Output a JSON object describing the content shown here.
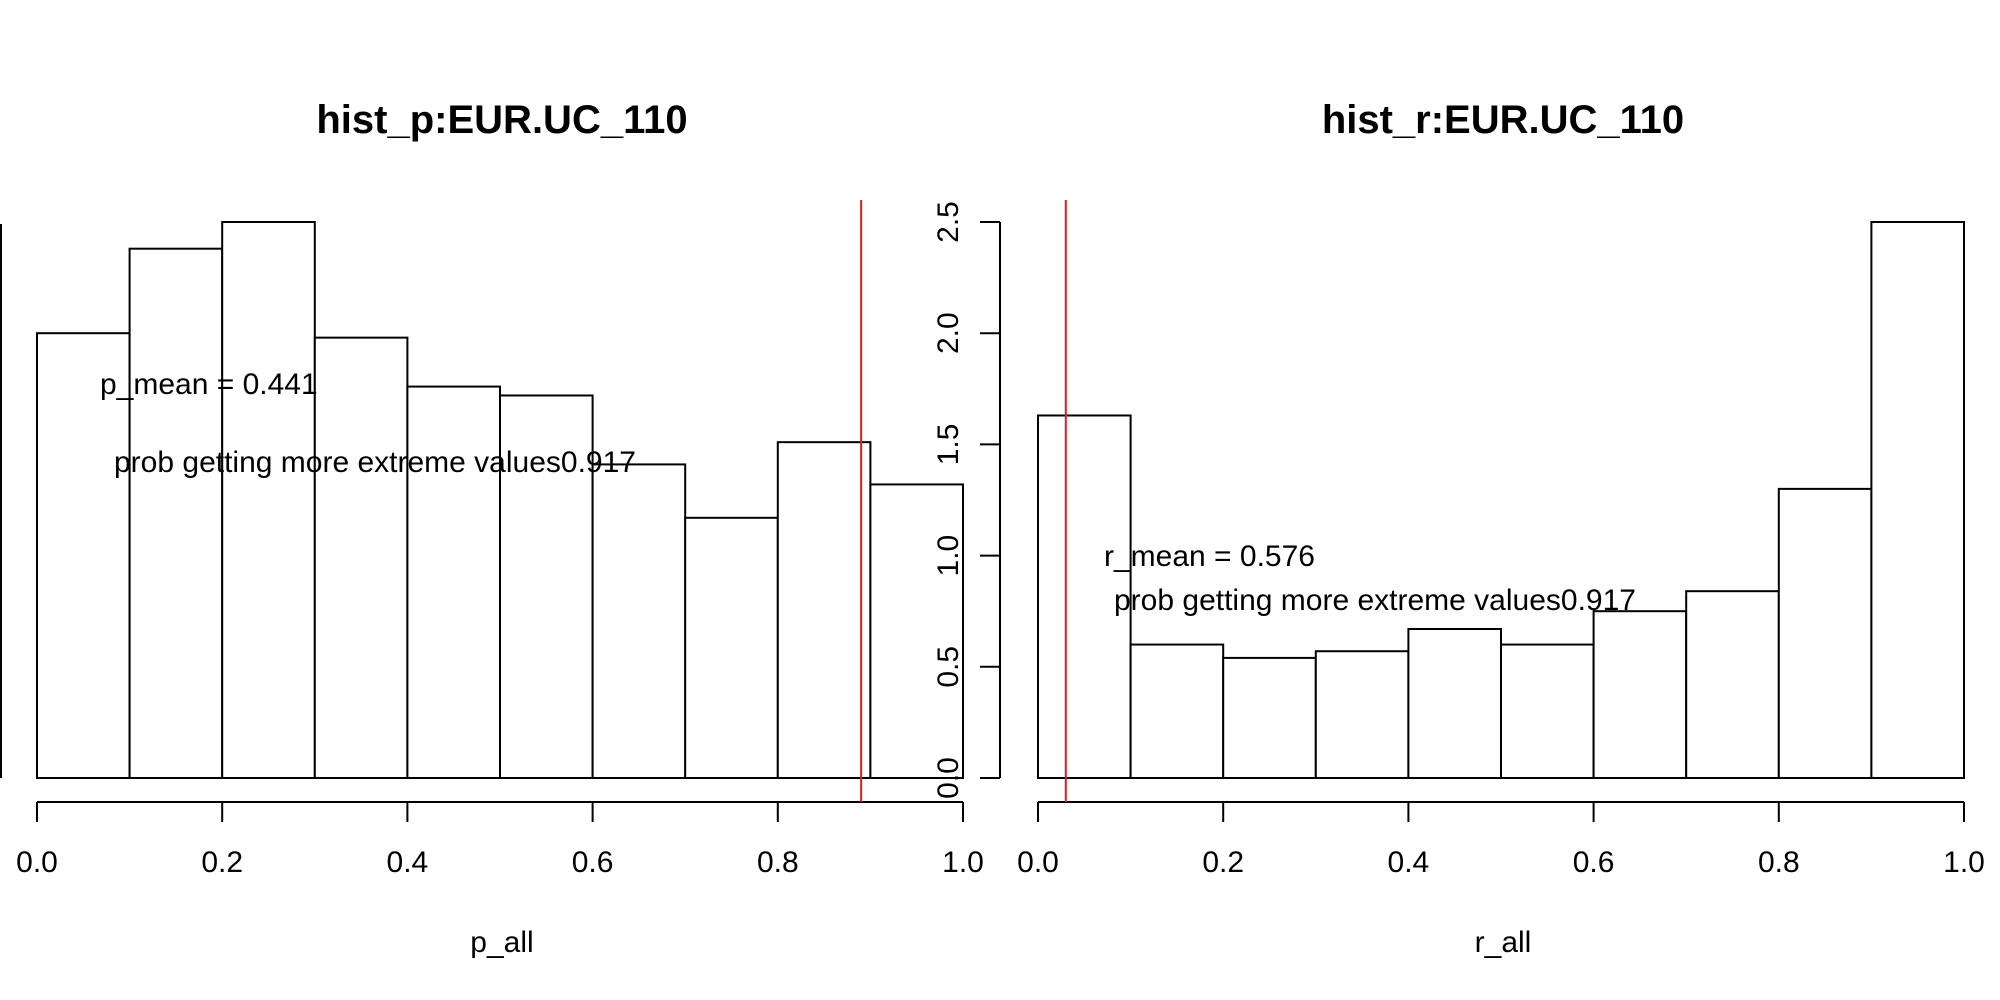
{
  "colors": {
    "bar_fill": "#ffffff",
    "bar_stroke": "#000000",
    "ref_line": "#cc2222"
  },
  "chart_data": [
    {
      "type": "bar",
      "subtype": "histogram",
      "title": "hist_p:EUR.UC_110",
      "xlabel": "p_all",
      "ylabel": "",
      "bin_edges": [
        0.0,
        0.1,
        0.2,
        0.3,
        0.4,
        0.5,
        0.6,
        0.7,
        0.8,
        0.9,
        1.0
      ],
      "values": [
        2.0,
        2.38,
        2.5,
        1.98,
        1.76,
        1.72,
        1.41,
        1.17,
        1.51,
        1.32
      ],
      "xlim": [
        0,
        1
      ],
      "ylim": [
        0,
        2.5
      ],
      "x_ticks": [
        "0.0",
        "0.2",
        "0.4",
        "0.6",
        "0.8",
        "1.0"
      ],
      "y_ticks": [],
      "ref_line_x": 0.89,
      "annotations": [
        "p_mean = 0.441",
        "prob getting more extreme values0.917"
      ]
    },
    {
      "type": "bar",
      "subtype": "histogram",
      "title": "hist_r:EUR.UC_110",
      "xlabel": "r_all",
      "ylabel": "",
      "bin_edges": [
        0.0,
        0.1,
        0.2,
        0.3,
        0.4,
        0.5,
        0.6,
        0.7,
        0.8,
        0.9,
        1.0
      ],
      "values": [
        1.63,
        0.6,
        0.54,
        0.57,
        0.67,
        0.6,
        0.75,
        0.84,
        1.3,
        2.5
      ],
      "xlim": [
        0,
        1
      ],
      "ylim": [
        0,
        2.5
      ],
      "x_ticks": [
        "0.0",
        "0.2",
        "0.4",
        "0.6",
        "0.8",
        "1.0"
      ],
      "y_ticks": [
        "0.0",
        "0.5",
        "1.0",
        "1.5",
        "2.0",
        "2.5"
      ],
      "ref_line_x": 0.03,
      "annotations": [
        "r_mean = 0.576",
        "prob getting more extreme values0.917"
      ]
    }
  ]
}
